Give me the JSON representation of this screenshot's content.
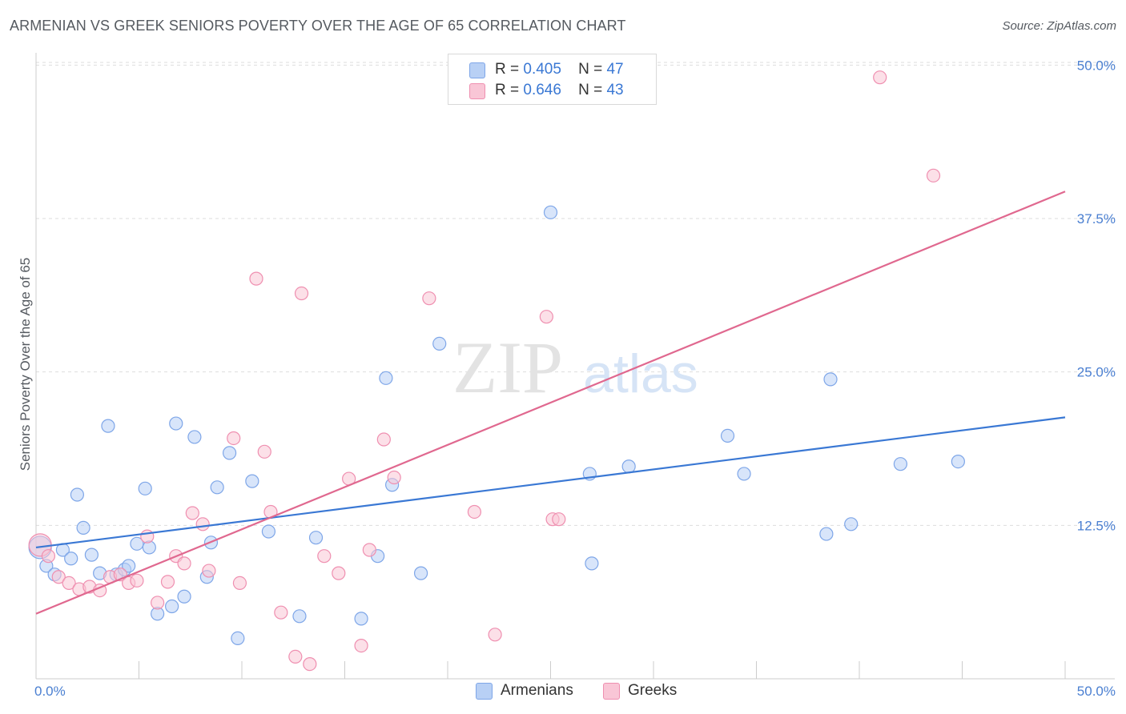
{
  "title": "ARMENIAN VS GREEK SENIORS POVERTY OVER THE AGE OF 65 CORRELATION CHART",
  "source": "Source: ZipAtlas.com",
  "watermark": {
    "zip": "ZIP",
    "atlas": "atlas"
  },
  "legend": {
    "armenians": {
      "r_label": "R =",
      "r_value": "0.405",
      "n_label": "N =",
      "n_value": "47",
      "color": "#b8d0f5",
      "border": "#7ea6e8"
    },
    "greeks": {
      "r_label": "R =",
      "r_value": "0.646",
      "n_label": "N =",
      "n_value": "43",
      "color": "#f9c6d6",
      "border": "#ef8fb0"
    }
  },
  "colors": {
    "armenians_line": "#3a78d4",
    "greeks_line": "#e0688f",
    "tick_text": "#4a7fd1",
    "grid": "#dddddd"
  },
  "chart_data": {
    "type": "scatter",
    "xlabel": "",
    "ylabel": "Seniors Poverty Over the Age of 65",
    "xlim": [
      0,
      50
    ],
    "ylim": [
      0,
      51
    ],
    "x_tick_labels": [
      "0.0%",
      "50.0%"
    ],
    "y_ticks": [
      12.5,
      25.0,
      37.5,
      50.0
    ],
    "y_tick_labels": [
      "12.5%",
      "25.0%",
      "37.5%",
      "50.0%"
    ],
    "grid": true,
    "legend_position": "top-center",
    "series": [
      {
        "name": "Armenians",
        "trendline": {
          "x": [
            0,
            50
          ],
          "y": [
            10.7,
            21.3
          ]
        },
        "points": [
          [
            0.2,
            10.7
          ],
          [
            0.5,
            9.2
          ],
          [
            0.9,
            8.5
          ],
          [
            1.3,
            10.5
          ],
          [
            1.7,
            9.8
          ],
          [
            2.0,
            15.0
          ],
          [
            2.3,
            12.3
          ],
          [
            2.7,
            10.1
          ],
          [
            3.1,
            8.6
          ],
          [
            3.5,
            20.6
          ],
          [
            3.9,
            8.5
          ],
          [
            4.3,
            8.9
          ],
          [
            4.5,
            9.2
          ],
          [
            4.9,
            11.0
          ],
          [
            5.3,
            15.5
          ],
          [
            5.5,
            10.7
          ],
          [
            5.9,
            5.3
          ],
          [
            6.6,
            5.9
          ],
          [
            6.8,
            20.8
          ],
          [
            7.2,
            6.7
          ],
          [
            7.7,
            19.7
          ],
          [
            8.3,
            8.3
          ],
          [
            8.5,
            11.1
          ],
          [
            8.8,
            15.6
          ],
          [
            9.4,
            18.4
          ],
          [
            9.8,
            3.3
          ],
          [
            10.5,
            16.1
          ],
          [
            11.3,
            12.0
          ],
          [
            12.8,
            5.1
          ],
          [
            13.6,
            11.5
          ],
          [
            15.8,
            4.9
          ],
          [
            16.6,
            10.0
          ],
          [
            17.0,
            24.5
          ],
          [
            17.3,
            15.8
          ],
          [
            18.7,
            8.6
          ],
          [
            19.6,
            27.3
          ],
          [
            25.0,
            38.0
          ],
          [
            26.9,
            16.7
          ],
          [
            27.0,
            9.4
          ],
          [
            28.8,
            17.3
          ],
          [
            33.6,
            19.8
          ],
          [
            34.4,
            16.7
          ],
          [
            38.4,
            11.8
          ],
          [
            38.6,
            24.4
          ],
          [
            39.6,
            12.6
          ],
          [
            42.0,
            17.5
          ],
          [
            44.8,
            17.7
          ]
        ]
      },
      {
        "name": "Greeks",
        "trendline": {
          "x": [
            0,
            50
          ],
          "y": [
            5.3,
            39.7
          ]
        },
        "points": [
          [
            0.2,
            10.9
          ],
          [
            0.6,
            10.0
          ],
          [
            1.1,
            8.3
          ],
          [
            1.6,
            7.8
          ],
          [
            2.1,
            7.3
          ],
          [
            2.6,
            7.5
          ],
          [
            3.1,
            7.2
          ],
          [
            3.6,
            8.3
          ],
          [
            4.1,
            8.5
          ],
          [
            4.5,
            7.8
          ],
          [
            4.9,
            8.0
          ],
          [
            5.4,
            11.6
          ],
          [
            5.9,
            6.2
          ],
          [
            6.4,
            7.9
          ],
          [
            6.8,
            10.0
          ],
          [
            7.2,
            9.4
          ],
          [
            7.6,
            13.5
          ],
          [
            8.1,
            12.6
          ],
          [
            8.4,
            8.8
          ],
          [
            9.6,
            19.6
          ],
          [
            9.9,
            7.8
          ],
          [
            10.7,
            32.6
          ],
          [
            11.1,
            18.5
          ],
          [
            11.4,
            13.6
          ],
          [
            11.9,
            5.4
          ],
          [
            12.6,
            1.8
          ],
          [
            12.9,
            31.4
          ],
          [
            13.3,
            1.2
          ],
          [
            14.0,
            10.0
          ],
          [
            14.7,
            8.6
          ],
          [
            15.2,
            16.3
          ],
          [
            15.8,
            2.7
          ],
          [
            16.2,
            10.5
          ],
          [
            16.9,
            19.5
          ],
          [
            17.4,
            16.4
          ],
          [
            19.1,
            31.0
          ],
          [
            21.3,
            13.6
          ],
          [
            22.3,
            3.6
          ],
          [
            24.8,
            29.5
          ],
          [
            25.1,
            13.0
          ],
          [
            25.4,
            13.0
          ],
          [
            41.0,
            49.0
          ],
          [
            43.6,
            41.0
          ]
        ]
      }
    ]
  }
}
